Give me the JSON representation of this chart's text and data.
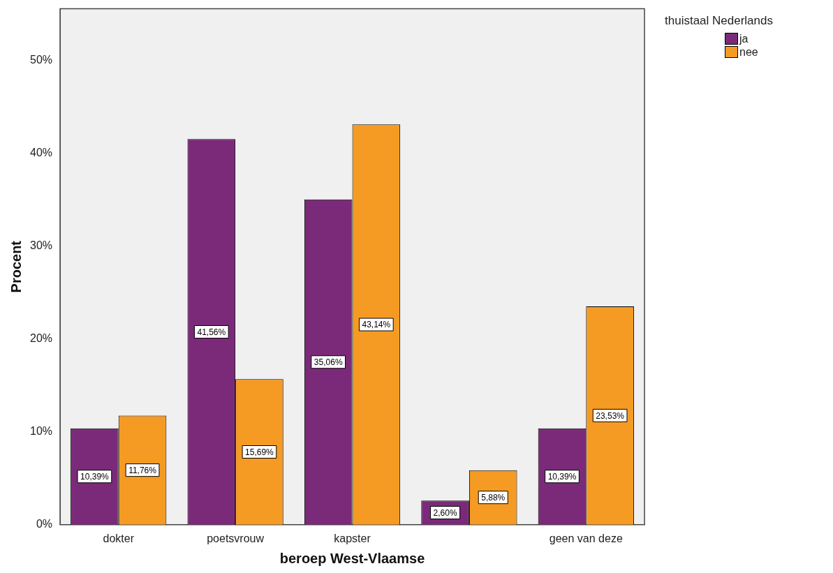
{
  "chart_data": {
    "type": "bar",
    "xlabel": "beroep West-Vlaamse",
    "ylabel": "Procent",
    "legend_title": "thuistaal Nederlands",
    "legend": "top right",
    "grid": false,
    "categories": [
      "dokter",
      "poetsvrouw",
      "kapster",
      null,
      "geen van deze"
    ],
    "ylim": [
      0,
      55.6
    ],
    "yticks": [
      {
        "value": 0,
        "label": "0%"
      },
      {
        "value": 10,
        "label": "10%"
      },
      {
        "value": 20,
        "label": "20%"
      },
      {
        "value": 30,
        "label": "30%"
      },
      {
        "value": 40,
        "label": "40%"
      },
      {
        "value": 50,
        "label": "50%"
      }
    ],
    "series": [
      {
        "name": "ja",
        "color": "#7b2a7a",
        "values": [
          10.39,
          41.56,
          35.06,
          2.6,
          10.39
        ],
        "value_labels": [
          "10,39%",
          "41,56%",
          "35,06%",
          "2,60%",
          "10,39%"
        ]
      },
      {
        "name": "nee",
        "color": "#f59b23",
        "values": [
          11.76,
          15.69,
          43.14,
          5.88,
          23.53
        ],
        "value_labels": [
          "11,76%",
          "15,69%",
          "43,14%",
          "5,88%",
          "23,53%"
        ]
      }
    ]
  }
}
